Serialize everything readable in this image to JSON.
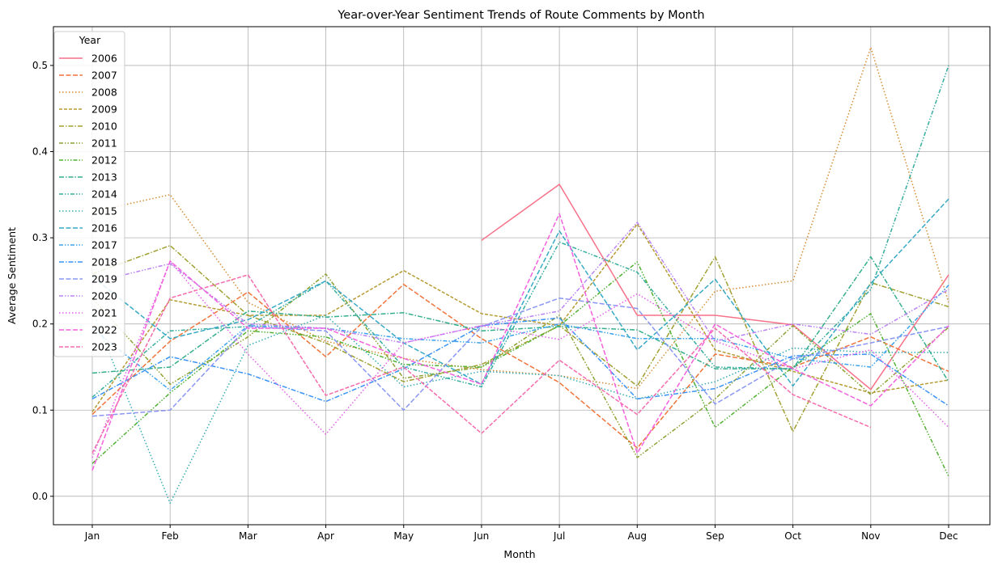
{
  "chart_data": {
    "type": "line",
    "title": "Year-over-Year Sentiment Trends of Route Comments by Month",
    "xlabel": "Month",
    "ylabel": "Average Sentiment",
    "legend_title": "Year",
    "legend_position": "top-left",
    "grid": true,
    "categories": [
      "Jan",
      "Feb",
      "Mar",
      "Apr",
      "May",
      "Jun",
      "Jul",
      "Aug",
      "Sep",
      "Oct",
      "Nov",
      "Dec"
    ],
    "ylim": [
      -0.033,
      0.545
    ],
    "yticks": [
      0.0,
      0.1,
      0.2,
      0.3,
      0.4,
      0.5
    ],
    "ytick_labels": [
      "0.0",
      "0.1",
      "0.2",
      "0.3",
      "0.4",
      "0.5"
    ],
    "series": [
      {
        "name": "2006",
        "color": "#f77189",
        "dash": "solid",
        "values": [
          null,
          null,
          null,
          null,
          null,
          0.297,
          0.362,
          0.21,
          0.21,
          0.199,
          0.124,
          0.257
        ]
      },
      {
        "name": "2007",
        "color": "#f0743b",
        "dash": "long",
        "values": [
          0.095,
          0.18,
          0.237,
          0.162,
          0.246,
          0.183,
          0.132,
          0.056,
          0.165,
          0.15,
          0.185,
          0.145
        ]
      },
      {
        "name": "2008",
        "color": "#d58c32",
        "dash": "dot",
        "values": [
          0.33,
          0.35,
          0.225,
          0.18,
          0.16,
          0.147,
          0.14,
          0.125,
          0.238,
          0.25,
          0.521,
          0.225
        ]
      },
      {
        "name": "2009",
        "color": "#b59b31",
        "dash": "dash",
        "values": [
          0.098,
          0.228,
          0.21,
          0.21,
          0.262,
          0.212,
          0.198,
          0.316,
          0.17,
          0.145,
          0.12,
          0.135
        ]
      },
      {
        "name": "2010",
        "color": "#a0a032",
        "dash": "dashdot",
        "values": [
          0.258,
          0.291,
          0.21,
          0.178,
          0.133,
          0.153,
          0.198,
          0.128,
          0.278,
          0.075,
          0.248,
          0.22
        ]
      },
      {
        "name": "2011",
        "color": "#8ba233",
        "dash": "dashdotdot",
        "values": [
          0.23,
          0.13,
          0.185,
          0.258,
          0.137,
          0.15,
          0.21,
          0.045,
          0.113,
          0.198,
          0.118,
          0.196
        ]
      },
      {
        "name": "2012",
        "color": "#50b131",
        "dash": "dashdotdot2",
        "values": [
          0.038,
          0.12,
          0.192,
          0.185,
          0.153,
          0.15,
          0.198,
          0.272,
          0.08,
          0.15,
          0.212,
          0.023
        ]
      },
      {
        "name": "2013",
        "color": "#34ae8d",
        "dash": "dashdot",
        "values": [
          0.143,
          0.15,
          0.215,
          0.208,
          0.213,
          0.192,
          0.197,
          0.193,
          0.148,
          0.148,
          0.278,
          0.133
        ]
      },
      {
        "name": "2014",
        "color": "#36ad9f",
        "dash": "dashdotdot",
        "values": [
          0.115,
          0.192,
          0.197,
          0.25,
          0.15,
          0.127,
          0.295,
          0.26,
          0.15,
          0.148,
          0.24,
          0.5
        ]
      },
      {
        "name": "2015",
        "color": "#37abb5",
        "dash": "dot",
        "values": [
          0.215,
          -0.008,
          0.175,
          0.21,
          0.127,
          0.145,
          0.14,
          0.113,
          0.133,
          0.172,
          0.167,
          0.167
        ]
      },
      {
        "name": "2016",
        "color": "#38a9c5",
        "dash": "long",
        "values": [
          0.255,
          0.183,
          0.205,
          0.25,
          0.178,
          0.13,
          0.308,
          0.17,
          0.252,
          0.128,
          0.247,
          0.345
        ]
      },
      {
        "name": "2017",
        "color": "#3ba3ec",
        "dash": "dashdotdot",
        "values": [
          0.195,
          0.123,
          0.198,
          0.195,
          0.183,
          0.178,
          0.2,
          0.183,
          0.183,
          0.16,
          0.15,
          0.245
        ]
      },
      {
        "name": "2018",
        "color": "#3b93f5",
        "dash": "dashdot",
        "values": [
          0.113,
          0.162,
          0.142,
          0.11,
          0.148,
          0.198,
          0.207,
          0.113,
          0.125,
          0.163,
          0.165,
          0.105
        ]
      },
      {
        "name": "2019",
        "color": "#8996f3",
        "dash": "long",
        "values": [
          0.093,
          0.1,
          0.197,
          0.192,
          0.1,
          0.197,
          0.23,
          0.218,
          0.107,
          0.16,
          0.178,
          0.197
        ]
      },
      {
        "name": "2020",
        "color": "#bb83f4",
        "dash": "dashdotdot",
        "values": [
          0.248,
          0.27,
          0.2,
          0.195,
          0.178,
          0.198,
          0.215,
          0.318,
          0.18,
          0.2,
          0.188,
          0.24
        ]
      },
      {
        "name": "2021",
        "color": "#e35fea",
        "dash": "dot",
        "values": [
          0.045,
          0.273,
          0.165,
          0.072,
          0.178,
          0.198,
          0.182,
          0.235,
          0.18,
          0.148,
          0.17,
          0.08
        ]
      },
      {
        "name": "2022",
        "color": "#f461dd",
        "dash": "long",
        "values": [
          0.03,
          0.273,
          0.195,
          0.195,
          0.16,
          0.13,
          0.328,
          0.05,
          0.2,
          0.148,
          0.105,
          0.198
        ]
      },
      {
        "name": "2023",
        "color": "#f66bad",
        "dash": "dashed",
        "values": [
          0.05,
          0.23,
          0.257,
          0.117,
          0.15,
          0.073,
          0.158,
          0.095,
          0.195,
          0.118,
          0.08,
          null
        ]
      }
    ]
  }
}
